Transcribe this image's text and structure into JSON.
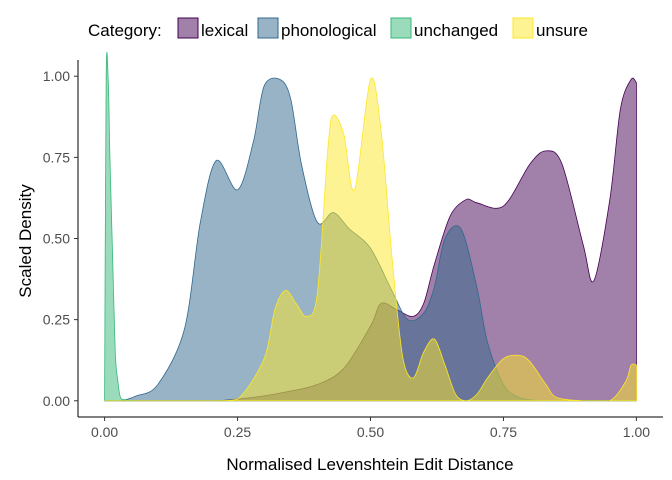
{
  "chart_data": {
    "type": "area",
    "title": "",
    "xlabel": "Normalised Levenshtein Edit Distance",
    "ylabel": "Scaled Density",
    "xlim": [
      -0.05,
      1.05
    ],
    "ylim": [
      -0.05,
      1.05
    ],
    "x_ticks": [
      0.0,
      0.25,
      0.5,
      0.75,
      1.0
    ],
    "x_tick_labels": [
      "0.00",
      "0.25",
      "0.50",
      "0.75",
      "1.00"
    ],
    "y_ticks": [
      0.0,
      0.25,
      0.5,
      0.75,
      1.0
    ],
    "y_tick_labels": [
      "0.00",
      "0.25",
      "0.50",
      "0.75",
      "1.00"
    ],
    "grid": false,
    "legend": {
      "title": "Category:",
      "position": "top"
    },
    "series": [
      {
        "name": "lexical",
        "fill": "#440154",
        "stroke": "#440154",
        "alpha": 0.5,
        "x": [
          0.0,
          0.1,
          0.2,
          0.25,
          0.3,
          0.35,
          0.4,
          0.45,
          0.5,
          0.52,
          0.55,
          0.58,
          0.6,
          0.62,
          0.65,
          0.68,
          0.7,
          0.75,
          0.8,
          0.83,
          0.86,
          0.9,
          0.92,
          0.95,
          0.97,
          0.99,
          1.0
        ],
        "y": [
          0.0,
          0.0,
          0.0,
          0.005,
          0.015,
          0.03,
          0.05,
          0.1,
          0.23,
          0.3,
          0.28,
          0.26,
          0.3,
          0.42,
          0.57,
          0.62,
          0.61,
          0.6,
          0.73,
          0.77,
          0.73,
          0.48,
          0.37,
          0.62,
          0.9,
          0.99,
          0.98
        ]
      },
      {
        "name": "phonological",
        "fill": "#31688e",
        "stroke": "#31688e",
        "alpha": 0.5,
        "x": [
          0.0,
          0.03,
          0.06,
          0.1,
          0.15,
          0.18,
          0.21,
          0.25,
          0.28,
          0.3,
          0.33,
          0.35,
          0.37,
          0.4,
          0.43,
          0.46,
          0.5,
          0.54,
          0.57,
          0.6,
          0.62,
          0.64,
          0.67,
          0.7,
          0.72,
          0.75,
          0.78,
          0.82,
          0.86,
          0.9,
          0.95,
          1.0
        ],
        "y": [
          0.0,
          0.0,
          0.015,
          0.05,
          0.22,
          0.55,
          0.74,
          0.65,
          0.8,
          0.97,
          0.99,
          0.93,
          0.73,
          0.55,
          0.58,
          0.53,
          0.47,
          0.34,
          0.25,
          0.27,
          0.35,
          0.5,
          0.53,
          0.35,
          0.18,
          0.05,
          0.01,
          0.0,
          0.0,
          0.0,
          0.0,
          0.0
        ]
      },
      {
        "name": "unchanged",
        "fill": "#35b779",
        "stroke": "#35b779",
        "alpha": 0.5,
        "x": [
          0.0,
          0.003,
          0.007,
          0.01,
          0.015,
          0.02,
          0.025,
          0.03,
          0.04,
          0.06,
          0.1,
          0.2,
          0.5,
          0.8,
          1.0
        ],
        "y": [
          0.0,
          1.0,
          0.98,
          0.75,
          0.45,
          0.15,
          0.06,
          0.01,
          0.003,
          0.0,
          0.0,
          0.0,
          0.0,
          0.0,
          0.0
        ]
      },
      {
        "name": "unsure",
        "fill": "#fde725",
        "stroke": "#fde725",
        "alpha": 0.5,
        "x": [
          0.0,
          0.2,
          0.25,
          0.3,
          0.32,
          0.34,
          0.36,
          0.38,
          0.4,
          0.42,
          0.43,
          0.45,
          0.47,
          0.5,
          0.52,
          0.54,
          0.56,
          0.58,
          0.6,
          0.62,
          0.64,
          0.66,
          0.68,
          0.7,
          0.72,
          0.75,
          0.78,
          0.8,
          0.83,
          0.85,
          0.9,
          0.95,
          0.98,
          0.99,
          1.0
        ],
        "y": [
          0.0,
          0.0,
          0.005,
          0.13,
          0.28,
          0.34,
          0.3,
          0.26,
          0.33,
          0.78,
          0.88,
          0.82,
          0.65,
          0.99,
          0.83,
          0.45,
          0.14,
          0.07,
          0.15,
          0.19,
          0.11,
          0.02,
          0.0,
          0.02,
          0.07,
          0.13,
          0.14,
          0.12,
          0.05,
          0.01,
          0.0,
          0.0,
          0.06,
          0.11,
          0.11
        ]
      }
    ]
  }
}
